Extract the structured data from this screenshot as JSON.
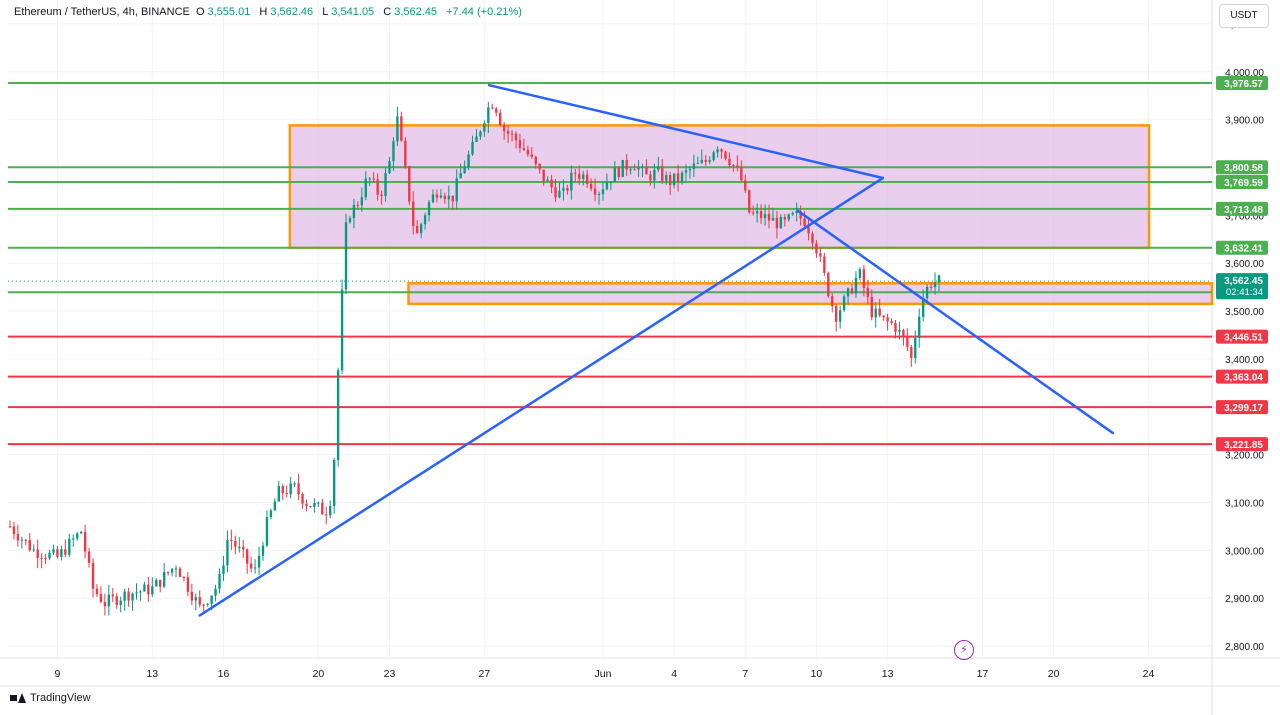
{
  "header": {
    "symbol": "Ethereum / TetherUS, 4h, BINANCE",
    "open_label": "O",
    "open": "3,555.01",
    "high_label": "H",
    "high": "3,562.46",
    "low_label": "L",
    "low": "3,541.05",
    "close_label": "C",
    "close": "3,562.45",
    "change": "+7.44 (+0.21%)"
  },
  "currency_button": "USDT",
  "brand": "TradingView",
  "colors": {
    "support_green": "#4caf50",
    "resistance_red": "#f23645",
    "trendline_blue": "#2962ff",
    "zone_orange": "#ff9800",
    "zone_fill": "#e1bee7",
    "up_candle": "#089981",
    "down_candle": "#f23645",
    "price_label": "#089981"
  },
  "chart_data": {
    "type": "candlestick",
    "x_ticks": [
      "9",
      "13",
      "16",
      "20",
      "23",
      "27",
      "Jun",
      "4",
      "7",
      "10",
      "13",
      "17",
      "20",
      "24"
    ],
    "y_ticks": [
      2800,
      2900,
      3000,
      3100,
      3200,
      3300,
      3400,
      3500,
      3600,
      3700,
      3800,
      3900,
      4000,
      4100
    ],
    "y_tick_labels": [
      "2,800.00",
      "2,900.00",
      "3,000.00",
      "3,100.00",
      "3,200.00",
      "3,300.00",
      "3,400.00",
      "3,500.00",
      "3,600.00",
      "3,700.00",
      "3,800.00",
      "3,900.00",
      "4,000.00",
      "4,100.00"
    ],
    "ylim": [
      2775,
      4150
    ],
    "current_price": {
      "value": 3562.45,
      "label": "3,562.45",
      "countdown": "02:41:34"
    },
    "horizontal_levels": [
      {
        "value": 3976.57,
        "label": "3,976.57",
        "kind": "support"
      },
      {
        "value": 3800.58,
        "label": "3,800.58",
        "kind": "support"
      },
      {
        "value": 3769.59,
        "label": "3,769.59",
        "kind": "support"
      },
      {
        "value": 3713.48,
        "label": "3,713.48",
        "kind": "support"
      },
      {
        "value": 3632.41,
        "label": "3,632.41",
        "kind": "support"
      },
      {
        "value": 3539.26,
        "label": "3,539.26",
        "kind": "support"
      },
      {
        "value": 3446.51,
        "label": "3,446.51",
        "kind": "resistance"
      },
      {
        "value": 3363.04,
        "label": "3,363.04",
        "kind": "resistance"
      },
      {
        "value": 3299.17,
        "label": "3,299.17",
        "kind": "resistance"
      },
      {
        "value": 3221.85,
        "label": "3,221.85",
        "kind": "resistance"
      }
    ],
    "zones": [
      {
        "from_x": 18.8,
        "to_x": 23.8,
        "low": 3632,
        "high": 3888
      },
      {
        "from_x": 23.8,
        "to_x": 31.0,
        "low": 3515,
        "high": 3558
      }
    ],
    "trendlines": [
      {
        "x1": 15.0,
        "y1": 2864,
        "x2": 43.8,
        "y2": 3778
      },
      {
        "x1": 27.2,
        "y1": 3972,
        "x2": 43.8,
        "y2": 3778
      },
      {
        "x1": 40.2,
        "y1": 3710,
        "x2": 53.5,
        "y2": 3245
      }
    ],
    "x_labels_days": [
      9,
      13,
      16,
      20,
      23,
      27,
      32,
      35,
      38,
      41,
      44,
      48,
      51,
      55
    ],
    "x_range_days": [
      7.0,
      57.0
    ],
    "price_path": [
      [
        7.0,
        3050
      ],
      [
        8.0,
        3000
      ],
      [
        9.0,
        2985
      ],
      [
        10.0,
        3040
      ],
      [
        10.5,
        2920
      ],
      [
        11.0,
        2890
      ],
      [
        12.0,
        2910
      ],
      [
        13.0,
        2920
      ],
      [
        14.0,
        2970
      ],
      [
        15.0,
        2880
      ],
      [
        15.8,
        2930
      ],
      [
        16.2,
        3030
      ],
      [
        16.8,
        2990
      ],
      [
        17.3,
        2950
      ],
      [
        17.8,
        3050
      ],
      [
        18.3,
        3120
      ],
      [
        19.0,
        3130
      ],
      [
        19.5,
        3100
      ],
      [
        20.3,
        3080
      ],
      [
        20.6,
        3120
      ],
      [
        20.9,
        3450
      ],
      [
        21.2,
        3700
      ],
      [
        21.6,
        3720
      ],
      [
        22.1,
        3780
      ],
      [
        22.6,
        3740
      ],
      [
        23.0,
        3810
      ],
      [
        23.3,
        3910
      ],
      [
        23.7,
        3780
      ],
      [
        24.1,
        3650
      ],
      [
        24.6,
        3720
      ],
      [
        25.1,
        3760
      ],
      [
        25.6,
        3730
      ],
      [
        26.1,
        3800
      ],
      [
        26.6,
        3850
      ],
      [
        27.1,
        3920
      ],
      [
        27.4,
        3940
      ],
      [
        27.8,
        3880
      ],
      [
        28.3,
        3860
      ],
      [
        28.8,
        3830
      ],
      [
        29.3,
        3790
      ],
      [
        29.8,
        3760
      ],
      [
        30.3,
        3740
      ],
      [
        30.8,
        3790
      ],
      [
        31.3,
        3780
      ],
      [
        31.8,
        3750
      ],
      [
        32.3,
        3780
      ],
      [
        32.8,
        3800
      ],
      [
        33.3,
        3810
      ],
      [
        33.8,
        3780
      ],
      [
        34.3,
        3790
      ],
      [
        34.8,
        3770
      ],
      [
        35.3,
        3780
      ],
      [
        35.8,
        3800
      ],
      [
        36.3,
        3810
      ],
      [
        36.8,
        3850
      ],
      [
        37.3,
        3820
      ],
      [
        37.8,
        3780
      ],
      [
        38.2,
        3700
      ],
      [
        38.6,
        3700
      ],
      [
        39.1,
        3690
      ],
      [
        39.6,
        3680
      ],
      [
        40.1,
        3700
      ],
      [
        40.5,
        3690
      ],
      [
        40.9,
        3650
      ],
      [
        41.4,
        3560
      ],
      [
        41.8,
        3490
      ],
      [
        42.3,
        3530
      ],
      [
        42.8,
        3580
      ],
      [
        43.3,
        3500
      ],
      [
        43.8,
        3480
      ],
      [
        44.3,
        3470
      ],
      [
        44.8,
        3430
      ],
      [
        45.0,
        3400
      ],
      [
        45.4,
        3520
      ],
      [
        45.8,
        3560
      ],
      [
        46.2,
        3562
      ]
    ]
  }
}
